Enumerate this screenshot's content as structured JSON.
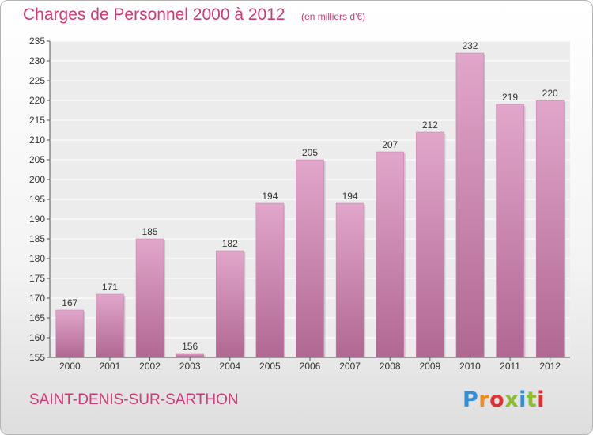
{
  "chart_data": {
    "type": "bar",
    "title": "Charges de Personnel 2000 à 2012",
    "subtitle": "(en milliers d'€)",
    "categories": [
      "2000",
      "2001",
      "2002",
      "2003",
      "2004",
      "2005",
      "2006",
      "2007",
      "2008",
      "2009",
      "2010",
      "2011",
      "2012"
    ],
    "values": [
      167,
      171,
      185,
      156,
      182,
      194,
      205,
      194,
      207,
      212,
      232,
      219,
      220
    ],
    "ylim": [
      155,
      235
    ],
    "yticks": [
      155,
      160,
      165,
      170,
      175,
      180,
      185,
      190,
      195,
      200,
      205,
      210,
      215,
      220,
      225,
      230,
      235
    ],
    "grid": true,
    "bar_color": "#d48fba",
    "text_color": "#d03878"
  },
  "footer": {
    "commune": "SAINT-DENIS-SUR-SARTHON",
    "logo_text": "Proxiti",
    "logo_colors": [
      "#2f8fd8",
      "#f08c1a",
      "#e23030",
      "#8bbd2c",
      "#2f8fd8",
      "#8bbd2c",
      "#e23030"
    ]
  }
}
